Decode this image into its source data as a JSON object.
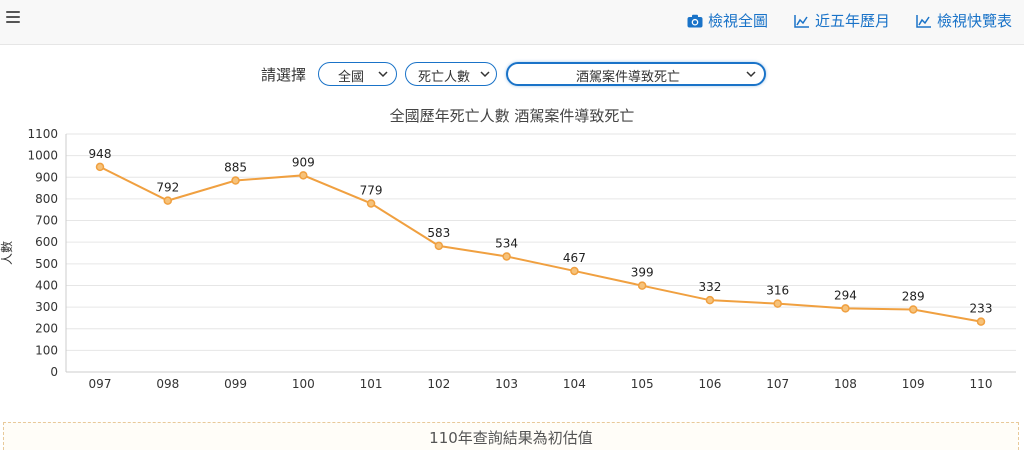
{
  "header": {
    "menu_icon": "hamburger-icon",
    "links": [
      {
        "label": "檢視全圖",
        "icon": "camera-icon"
      },
      {
        "label": "近五年歷月",
        "icon": "area-chart-icon"
      },
      {
        "label": "檢視快覽表",
        "icon": "area-chart-icon"
      }
    ],
    "accent_color": "#1a73c8"
  },
  "selectors": {
    "label": "請選擇",
    "region": "全國",
    "metric": "死亡人數",
    "category": "酒駕案件導致死亡"
  },
  "chart_data": {
    "type": "line",
    "title": "全國歷年死亡人數 酒駕案件導致死亡",
    "ylabel": "人數",
    "xlabel": "",
    "categories": [
      "097",
      "098",
      "099",
      "100",
      "101",
      "102",
      "103",
      "104",
      "105",
      "106",
      "107",
      "108",
      "109",
      "110"
    ],
    "series": [
      {
        "values": [
          948,
          792,
          885,
          909,
          779,
          583,
          534,
          467,
          399,
          332,
          316,
          294,
          289,
          233
        ],
        "color": "#f0a040"
      }
    ],
    "ylim": [
      0,
      1100
    ],
    "yticks": [
      0,
      100,
      200,
      300,
      400,
      500,
      600,
      700,
      800,
      900,
      1000,
      1100
    ],
    "grid": true,
    "data_labels": true
  },
  "note": "110年查詢結果為初估值"
}
